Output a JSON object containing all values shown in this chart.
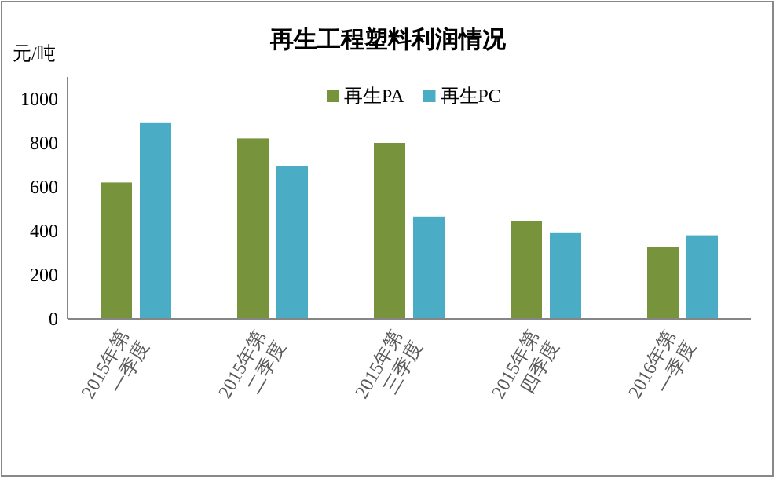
{
  "chart_data": {
    "type": "bar",
    "title": "再生工程塑料利润情况",
    "ylabel": "元/吨",
    "categories": [
      "2015年第一季度",
      "2015年第二季度",
      "2015年第三季度",
      "2015年第四季度",
      "2016年第一季度"
    ],
    "series": [
      {
        "name": "再生PA",
        "color": "#77933c",
        "values": [
          620,
          820,
          800,
          445,
          325
        ]
      },
      {
        "name": "再生PC",
        "color": "#4bacc6",
        "values": [
          890,
          695,
          465,
          390,
          380
        ]
      }
    ],
    "ylim": [
      0,
      1100
    ],
    "yticks": [
      0,
      200,
      400,
      600,
      800,
      1000
    ],
    "grid": false,
    "legend": "top"
  }
}
